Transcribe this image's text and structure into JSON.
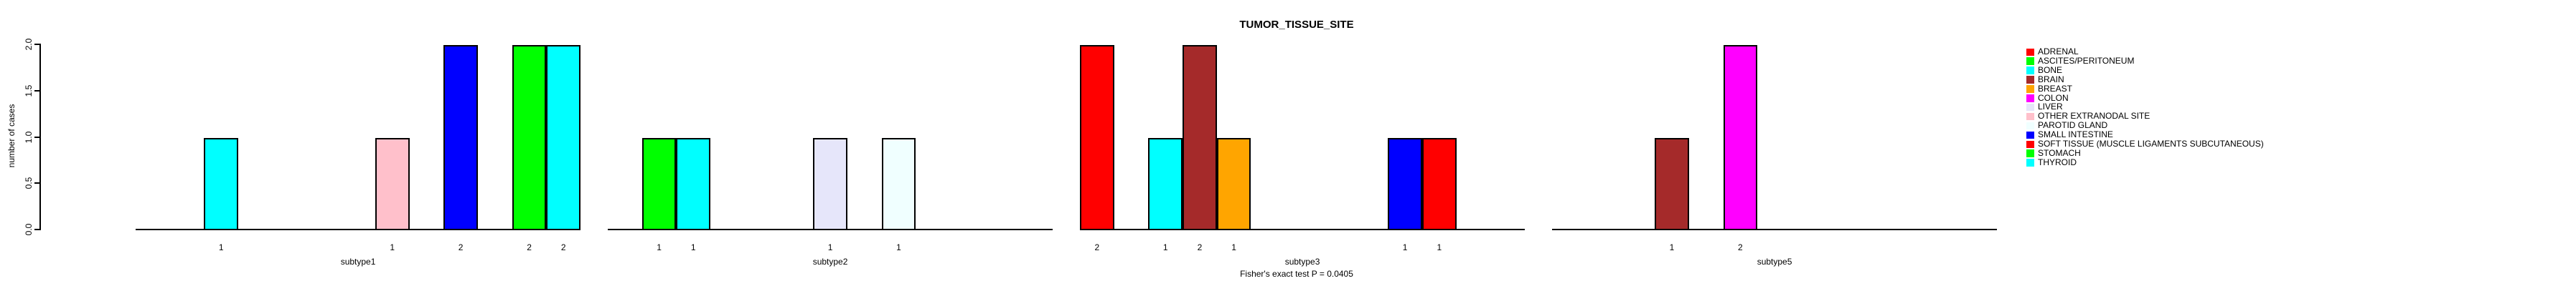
{
  "chart_data": {
    "type": "bar",
    "title": "TUMOR_TISSUE_SITE",
    "ylabel": "number of cases",
    "footer": "Fisher's exact test P = 0.0405",
    "ylim": [
      0,
      2
    ],
    "yticks": [
      "0.0",
      "0.5",
      "1.0",
      "1.5",
      "2.0"
    ],
    "grid": false,
    "legend_position": "right",
    "categories": [
      {
        "label": "ADRENAL",
        "color": "#FF0000"
      },
      {
        "label": "ASCITES/PERITONEUM",
        "color": "#00FF00"
      },
      {
        "label": "BONE",
        "color": "#00FFFF"
      },
      {
        "label": "BRAIN",
        "color": "#A52A2A"
      },
      {
        "label": "BREAST",
        "color": "#FFA500"
      },
      {
        "label": "COLON",
        "color": "#FF00FF"
      },
      {
        "label": "LIVER",
        "color": "#E6E6FA"
      },
      {
        "label": "OTHER EXTRANODAL SITE",
        "color": "#FFC0CB"
      },
      {
        "label": "PAROTID GLAND",
        "color": "#F0FFFF"
      },
      {
        "label": "SMALL INTESTINE",
        "color": "#0000FF"
      },
      {
        "label": "SOFT TISSUE (MUSCLE  LIGAMENTS  SUBCUTANEOUS)",
        "color": "#FF0000"
      },
      {
        "label": "STOMACH",
        "color": "#00FF00"
      },
      {
        "label": "THYROID",
        "color": "#00FFFF"
      }
    ],
    "groups": [
      {
        "label": "subtype1",
        "bars": [
          {
            "site": "BONE",
            "count": 1
          },
          {
            "site": "OTHER EXTRANODAL SITE",
            "count": 1
          },
          {
            "site": "SMALL INTESTINE",
            "count": 2
          },
          {
            "site": "STOMACH",
            "count": 2
          },
          {
            "site": "THYROID",
            "count": 2
          }
        ]
      },
      {
        "label": "subtype2",
        "bars": [
          {
            "site": "ASCITES/PERITONEUM",
            "count": 1
          },
          {
            "site": "BONE",
            "count": 1
          },
          {
            "site": "LIVER",
            "count": 1
          },
          {
            "site": "PAROTID GLAND",
            "count": 1
          }
        ]
      },
      {
        "label": "subtype3",
        "bars": [
          {
            "site": "ADRENAL",
            "count": 2
          },
          {
            "site": "BONE",
            "count": 1
          },
          {
            "site": "BRAIN",
            "count": 2
          },
          {
            "site": "BREAST",
            "count": 1
          },
          {
            "site": "SMALL INTESTINE",
            "count": 1
          },
          {
            "site": "SOFT TISSUE (MUSCLE  LIGAMENTS  SUBCUTANEOUS)",
            "count": 1
          }
        ]
      },
      {
        "label": "subtype5",
        "bars": [
          {
            "site": "BRAIN",
            "count": 1
          },
          {
            "site": "COLON",
            "count": 2
          }
        ]
      }
    ]
  }
}
